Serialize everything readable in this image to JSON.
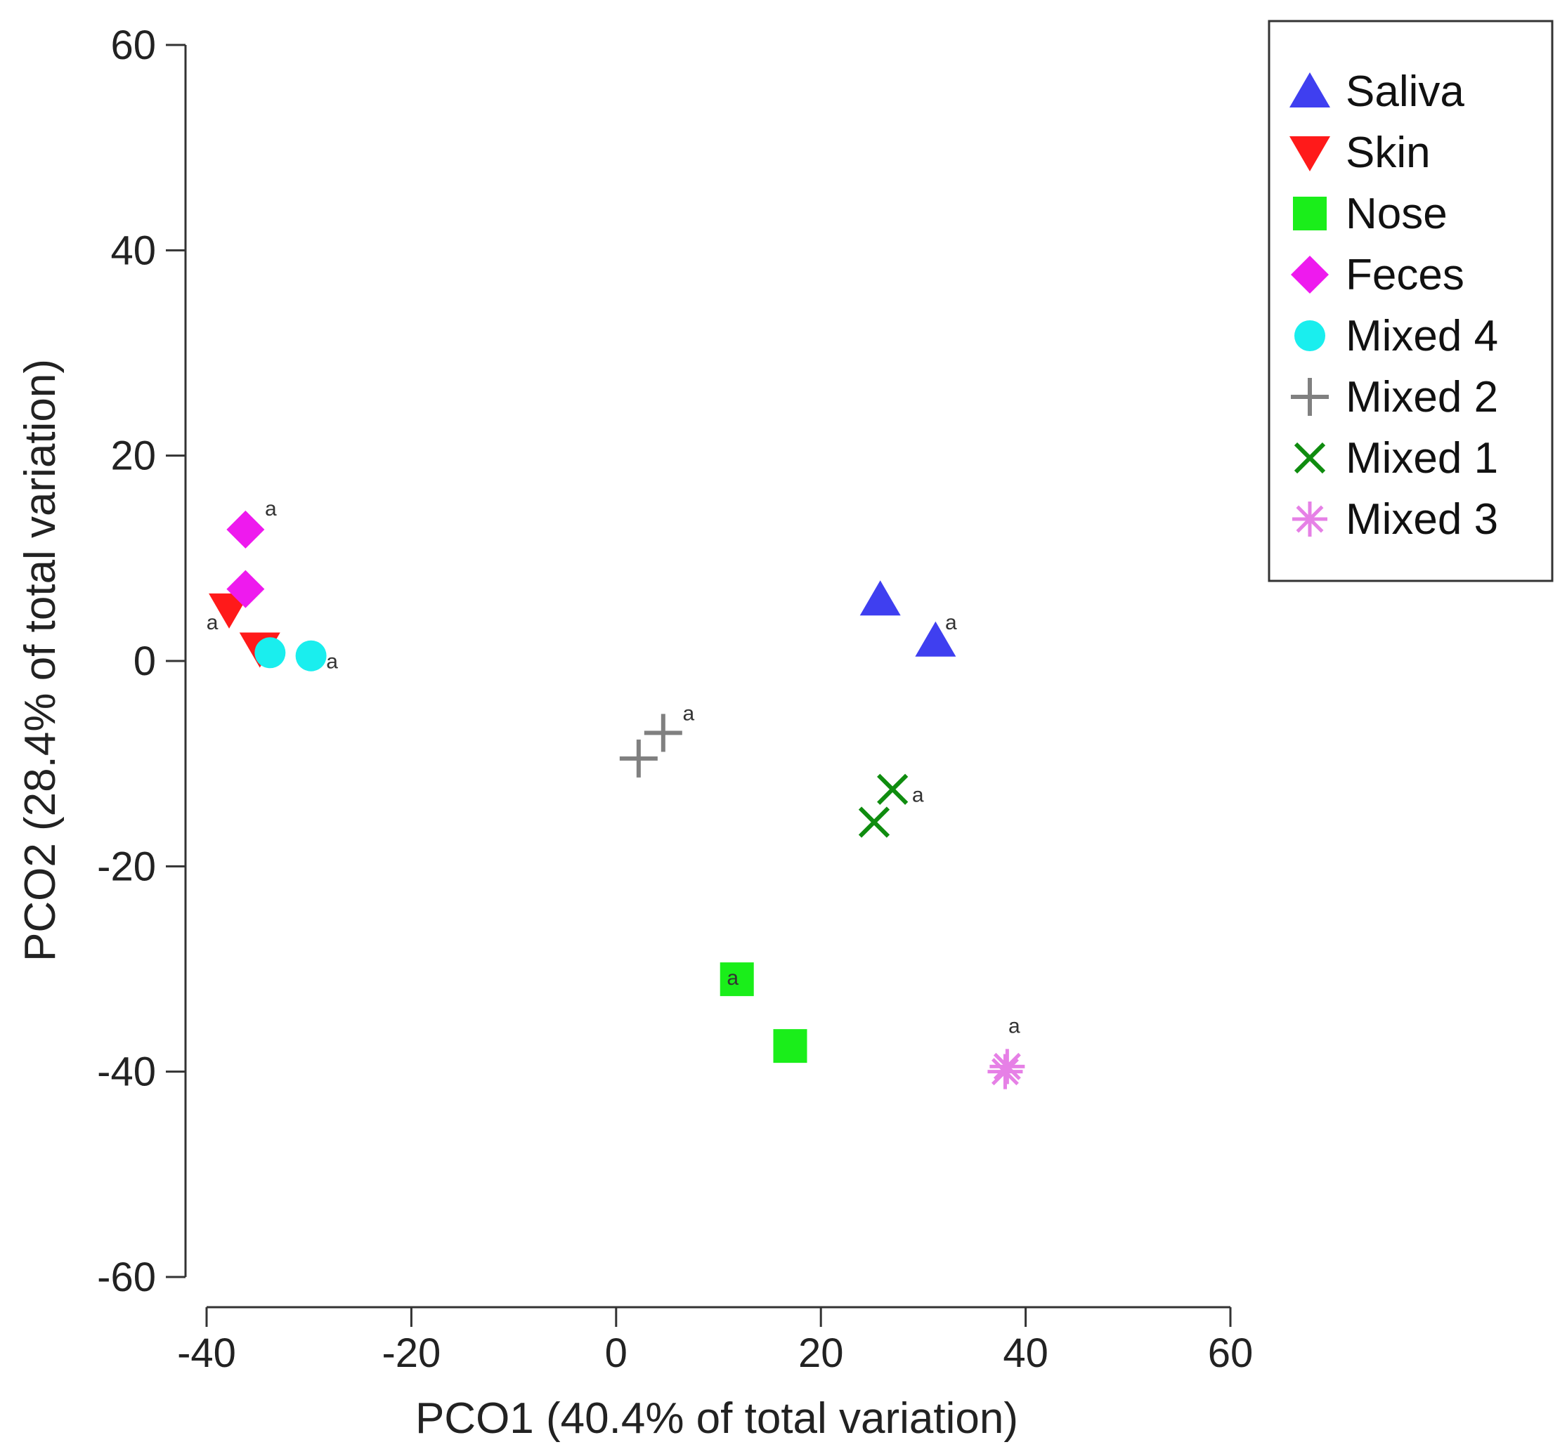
{
  "chart_data": {
    "type": "scatter",
    "title": "",
    "xlabel": "PCO1 (40.4% of total variation)",
    "ylabel": "PCO2 (28.4% of total variation)",
    "xlim": [
      -40,
      60
    ],
    "ylim": [
      -60,
      60
    ],
    "xticks": [
      -40,
      -20,
      0,
      20,
      40,
      60
    ],
    "yticks": [
      60,
      40,
      20,
      0,
      -20,
      -40,
      -60
    ],
    "xtick_labels": [
      "-40",
      "-20",
      "0",
      "20",
      "40",
      "60"
    ],
    "ytick_labels": [
      "60",
      "40",
      "20",
      "0",
      "-20",
      "-40",
      "-60"
    ],
    "grid": false,
    "legend_position": "top-right",
    "series": [
      {
        "name": "Saliva",
        "marker": "triangle-up",
        "color": "#3f3ff0",
        "points": [
          {
            "x": 25.8,
            "y": 6.0,
            "label": ""
          },
          {
            "x": 31.2,
            "y": 2.0,
            "label": "a"
          }
        ]
      },
      {
        "name": "Skin",
        "marker": "triangle-down",
        "color": "#ff1a1a",
        "points": [
          {
            "x": -37.8,
            "y": 5.0,
            "label": "a"
          },
          {
            "x": -34.8,
            "y": 1.2,
            "label": ""
          }
        ]
      },
      {
        "name": "Nose",
        "marker": "square",
        "color": "#1aee1a",
        "points": [
          {
            "x": 11.8,
            "y": -31.0,
            "label": "a"
          },
          {
            "x": 17.0,
            "y": -37.5,
            "label": ""
          }
        ]
      },
      {
        "name": "Feces",
        "marker": "diamond",
        "color": "#ee1aee",
        "points": [
          {
            "x": -36.2,
            "y": 12.8,
            "label": "a"
          },
          {
            "x": -36.2,
            "y": 7.0,
            "label": ""
          }
        ]
      },
      {
        "name": "Mixed 4",
        "marker": "circle",
        "color": "#1aeeee",
        "points": [
          {
            "x": -33.8,
            "y": 0.8,
            "label": ""
          },
          {
            "x": -29.8,
            "y": 0.5,
            "label": "a"
          }
        ]
      },
      {
        "name": "Mixed 2",
        "marker": "plus",
        "color": "#808080",
        "points": [
          {
            "x": 2.2,
            "y": -9.5,
            "label": ""
          },
          {
            "x": 4.6,
            "y": -7.0,
            "label": "a"
          }
        ]
      },
      {
        "name": "Mixed 1",
        "marker": "cross",
        "color": "#0f8c0f",
        "points": [
          {
            "x": 27.0,
            "y": -12.5,
            "label": "a"
          },
          {
            "x": 25.2,
            "y": -15.7,
            "label": ""
          }
        ]
      },
      {
        "name": "Mixed 3",
        "marker": "asterisk",
        "color": "#e680e6",
        "points": [
          {
            "x": 38.2,
            "y": -39.5,
            "label": "a"
          },
          {
            "x": 38.0,
            "y": -40.0,
            "label": ""
          }
        ]
      }
    ]
  }
}
